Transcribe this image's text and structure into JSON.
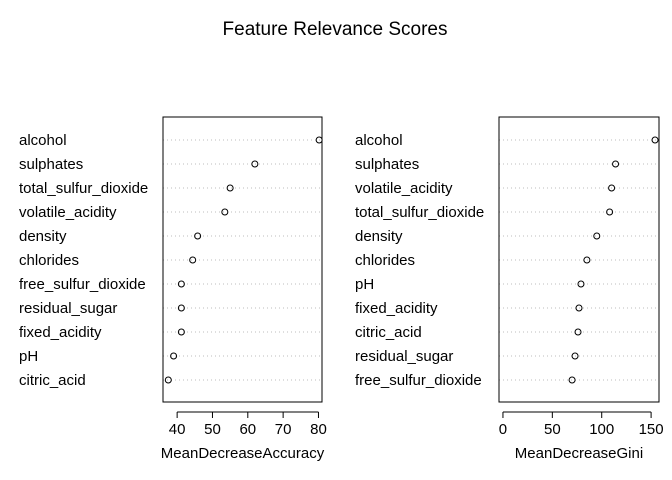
{
  "title": "Feature Relevance Scores",
  "chart_data": [
    {
      "type": "scatter",
      "subtype": "dotchart",
      "xlabel": "MeanDecreaseAccuracy",
      "xlim": [
        36,
        81
      ],
      "xticks": [
        40,
        50,
        60,
        70,
        80
      ],
      "grid": "dotted horizontal lines",
      "categories": [
        "alcohol",
        "sulphates",
        "total_sulfur_dioxide",
        "volatile_acidity",
        "density",
        "chlorides",
        "free_sulfur_dioxide",
        "residual_sugar",
        "fixed_acidity",
        "pH",
        "citric_acid"
      ],
      "values": [
        80.2,
        62.0,
        55.0,
        53.5,
        45.8,
        44.4,
        41.2,
        41.2,
        41.2,
        39.0,
        37.5
      ]
    },
    {
      "type": "scatter",
      "subtype": "dotchart",
      "xlabel": "MeanDecreaseGini",
      "xlim": [
        -4,
        158
      ],
      "xticks": [
        0,
        50,
        100,
        150
      ],
      "grid": "dotted horizontal lines",
      "categories": [
        "alcohol",
        "sulphates",
        "volatile_acidity",
        "total_sulfur_dioxide",
        "density",
        "chlorides",
        "pH",
        "fixed_acidity",
        "citric_acid",
        "residual_sugar",
        "free_sulfur_dioxide"
      ],
      "values": [
        154,
        114,
        110,
        108,
        95,
        85,
        79,
        77,
        76,
        73,
        70
      ]
    }
  ]
}
